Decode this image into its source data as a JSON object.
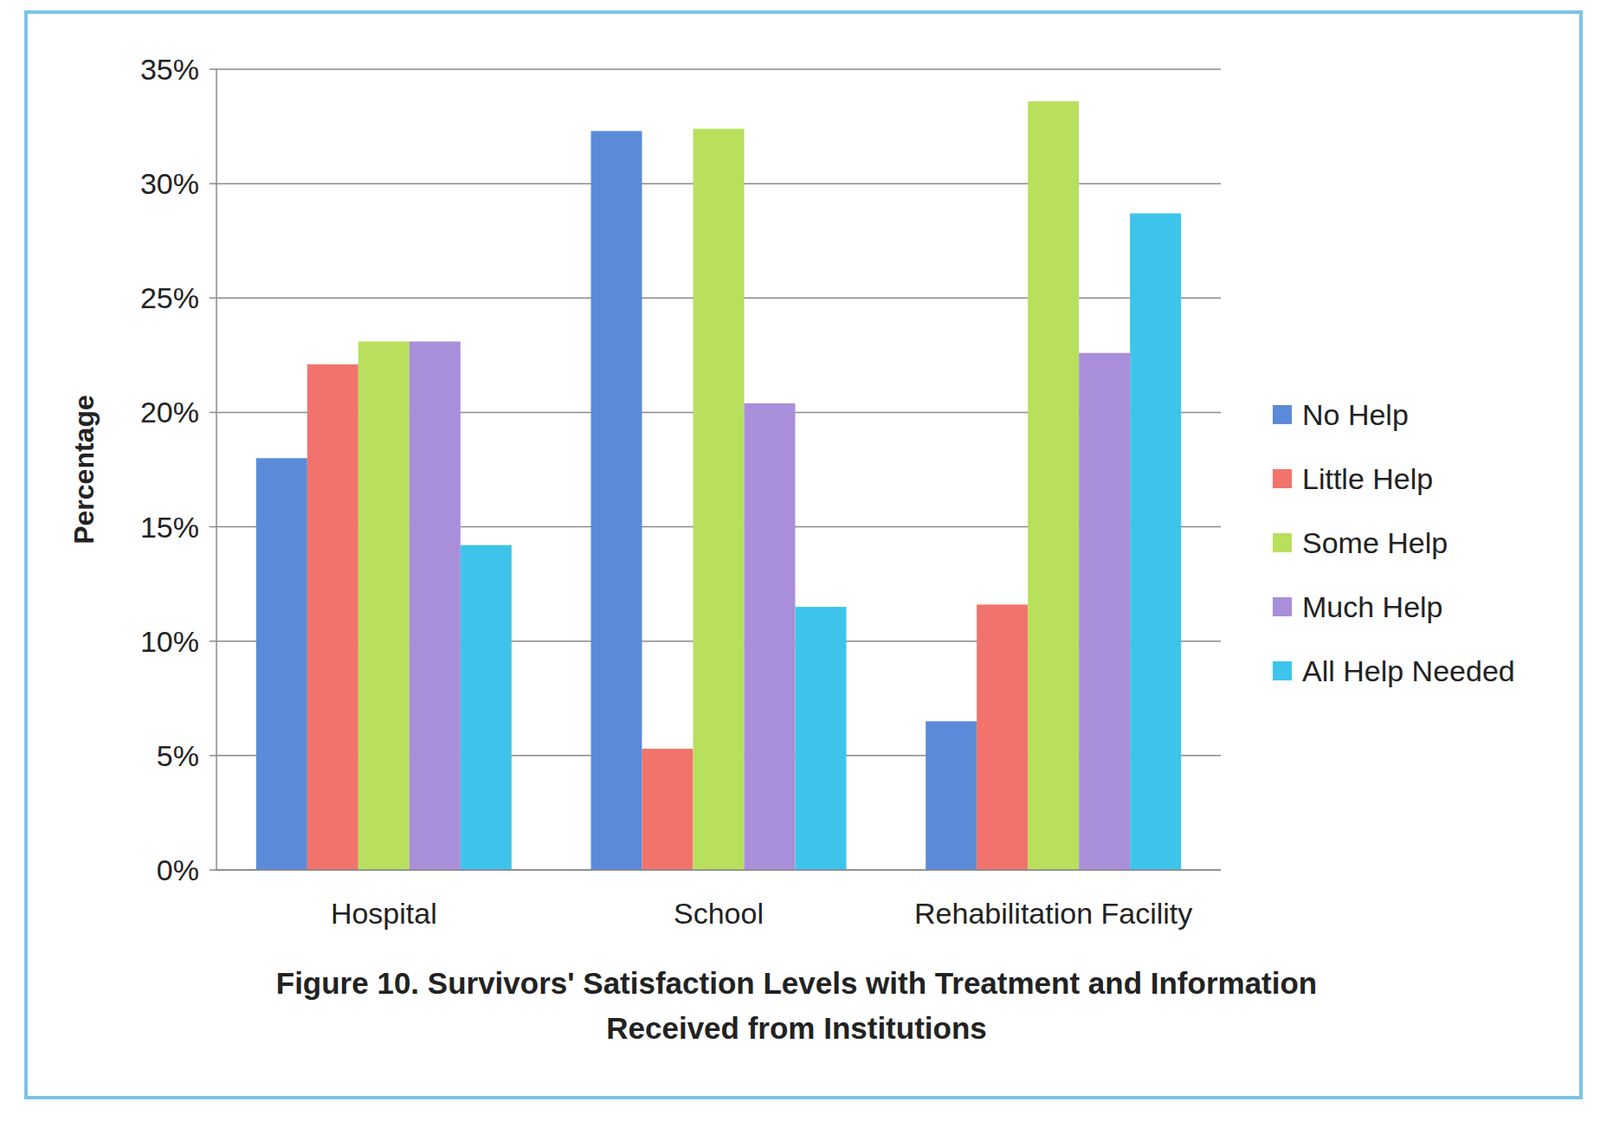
{
  "chart_data": {
    "type": "bar",
    "title": "Figure 10.  Survivors' Satisfaction Levels with Treatment and Information Received from Institutions",
    "y_label": "Percentage",
    "categories": [
      "Hospital",
      "School",
      "Rehabilitation Facility"
    ],
    "series": [
      {
        "name": "No Help",
        "color": "#5b8bd8",
        "values": [
          18.0,
          32.3,
          6.5
        ]
      },
      {
        "name": "Little Help",
        "color": "#f2736b",
        "values": [
          22.1,
          5.3,
          11.6
        ]
      },
      {
        "name": "Some Help",
        "color": "#b8e05c",
        "values": [
          23.1,
          32.4,
          33.6
        ]
      },
      {
        "name": "Much Help",
        "color": "#a98fd9",
        "values": [
          23.1,
          20.4,
          22.6
        ]
      },
      {
        "name": "All Help Needed",
        "color": "#3ec4ea",
        "values": [
          14.2,
          11.5,
          28.7
        ]
      }
    ],
    "ylim": [
      0,
      35
    ],
    "yticks": [
      {
        "value": 0,
        "label": "0%"
      },
      {
        "value": 5,
        "label": "5%"
      },
      {
        "value": 10,
        "label": "10%"
      },
      {
        "value": 15,
        "label": "15%"
      },
      {
        "value": 20,
        "label": "20%"
      },
      {
        "value": 25,
        "label": "25%"
      },
      {
        "value": 30,
        "label": "30%"
      },
      {
        "value": 35,
        "label": "35%"
      }
    ],
    "grid": true,
    "legend": "right"
  }
}
